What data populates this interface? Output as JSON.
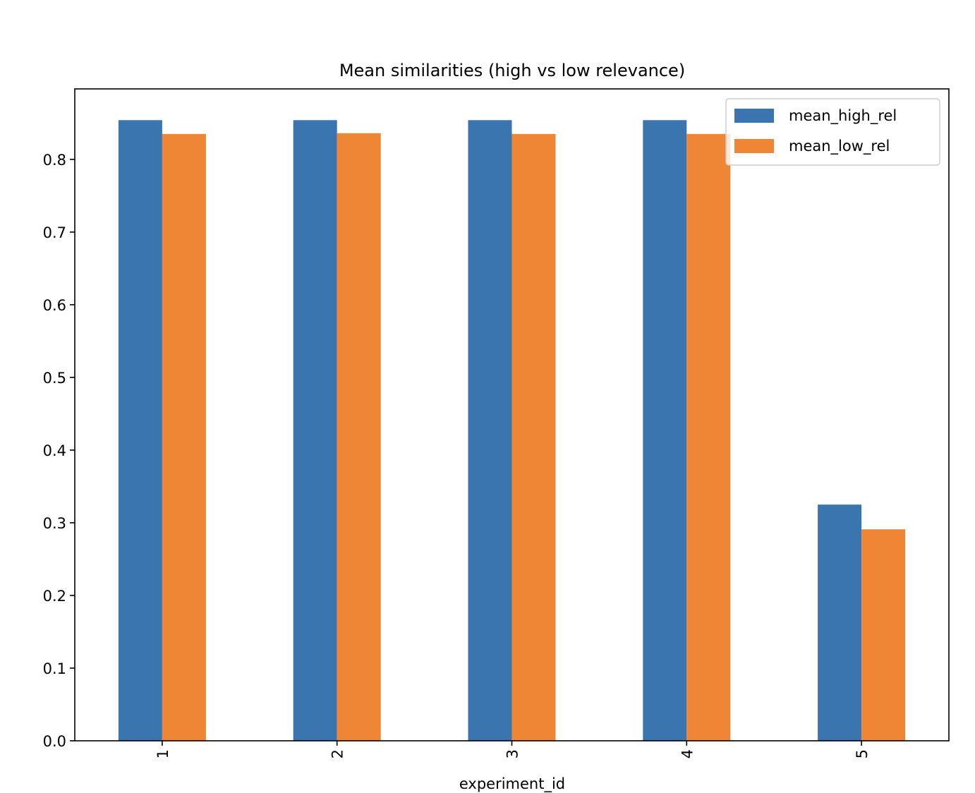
{
  "chart_data": {
    "type": "bar",
    "title": "Mean similarities (high vs low relevance)",
    "xlabel": "experiment_id",
    "ylabel": "",
    "categories": [
      "1",
      "2",
      "3",
      "4",
      "5"
    ],
    "series": [
      {
        "name": "mean_high_rel",
        "color": "#3a75af",
        "values": [
          0.854,
          0.854,
          0.854,
          0.854,
          0.325
        ]
      },
      {
        "name": "mean_low_rel",
        "color": "#ef8636",
        "values": [
          0.835,
          0.836,
          0.835,
          0.835,
          0.291
        ]
      }
    ],
    "ylim": [
      0,
      0.897
    ],
    "yticks": [
      0.0,
      0.1,
      0.2,
      0.3,
      0.4,
      0.5,
      0.6,
      0.7,
      0.8
    ],
    "ytick_labels": [
      "0.0",
      "0.1",
      "0.2",
      "0.3",
      "0.4",
      "0.5",
      "0.6",
      "0.7",
      "0.8"
    ],
    "legend_position": "top-right",
    "grid": false
  }
}
